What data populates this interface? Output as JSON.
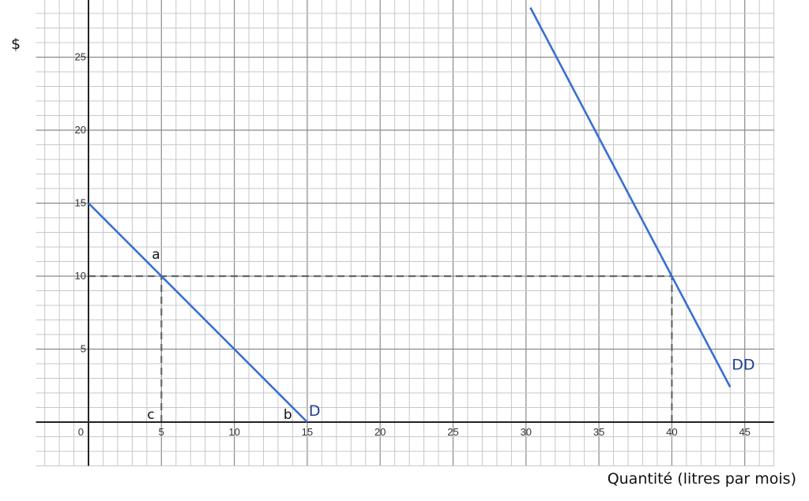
{
  "chart_data": {
    "type": "line",
    "title": "",
    "xlabel": "Quantité (litres par mois)",
    "ylabel": "$",
    "xlim": [
      -3.6,
      47
    ],
    "ylim": [
      -3,
      29
    ],
    "grid": true,
    "grid_minor_step": 1,
    "grid_major_step": 5,
    "x_ticks": [
      "0",
      "5",
      "10",
      "15",
      "20",
      "25",
      "30",
      "35",
      "40",
      "45"
    ],
    "y_ticks": [
      "5",
      "10",
      "15",
      "20",
      "25"
    ],
    "series": [
      {
        "name": "D",
        "color": "#3a6fd0",
        "points": [
          [
            0,
            15
          ],
          [
            15,
            0
          ]
        ]
      },
      {
        "name": "DD",
        "color": "#3a6fd0",
        "points": [
          [
            30.3,
            28.4
          ],
          [
            44,
            2.4
          ]
        ]
      }
    ],
    "reference_lines": [
      {
        "type": "horizontal",
        "y": 10,
        "from_x": 0,
        "to_x": 40,
        "style": "dashed"
      },
      {
        "type": "vertical",
        "x": 5,
        "from_y": 0,
        "to_y": 10,
        "style": "dashed"
      },
      {
        "type": "vertical",
        "x": 40,
        "from_y": 0,
        "to_y": 10,
        "style": "dashed"
      }
    ],
    "annotations": [
      {
        "text": "a",
        "x": 5,
        "y": 10
      },
      {
        "text": "b",
        "x": 15,
        "y": 0
      },
      {
        "text": "c",
        "x": 5,
        "y": 0
      }
    ]
  }
}
